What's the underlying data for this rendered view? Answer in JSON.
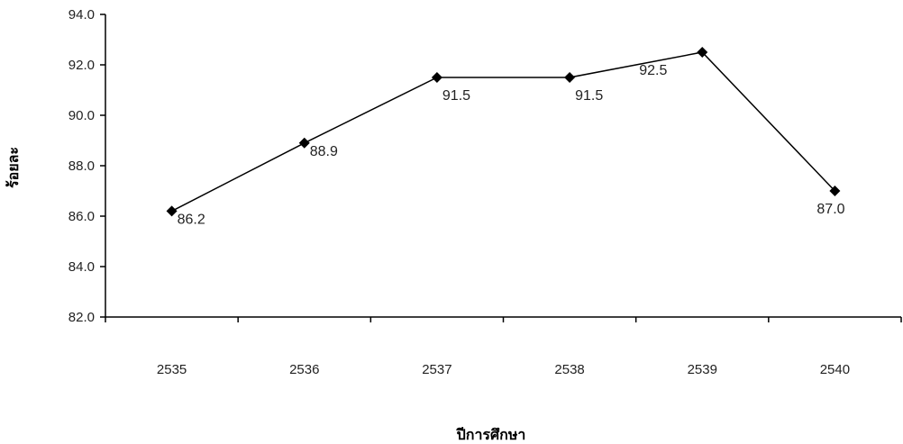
{
  "chart_data": {
    "type": "line",
    "title": "",
    "xlabel": "ปีการศึกษา",
    "ylabel": "ร้อยละ",
    "categories": [
      "2535",
      "2536",
      "2537",
      "2538",
      "2539",
      "2540"
    ],
    "series": [
      {
        "name": "",
        "values": [
          86.2,
          88.9,
          91.5,
          91.5,
          92.5,
          87.0
        ],
        "labels": [
          "86.2",
          "88.9",
          "91.5",
          "91.5",
          "92.5",
          "87.0"
        ]
      }
    ],
    "ylim": [
      82.0,
      94.0
    ],
    "yticks": [
      "82.0",
      "84.0",
      "86.0",
      "88.0",
      "90.0",
      "92.0",
      "94.0"
    ],
    "grid": false,
    "legend": "none",
    "marker": "diamond",
    "line_color": "#000000"
  }
}
